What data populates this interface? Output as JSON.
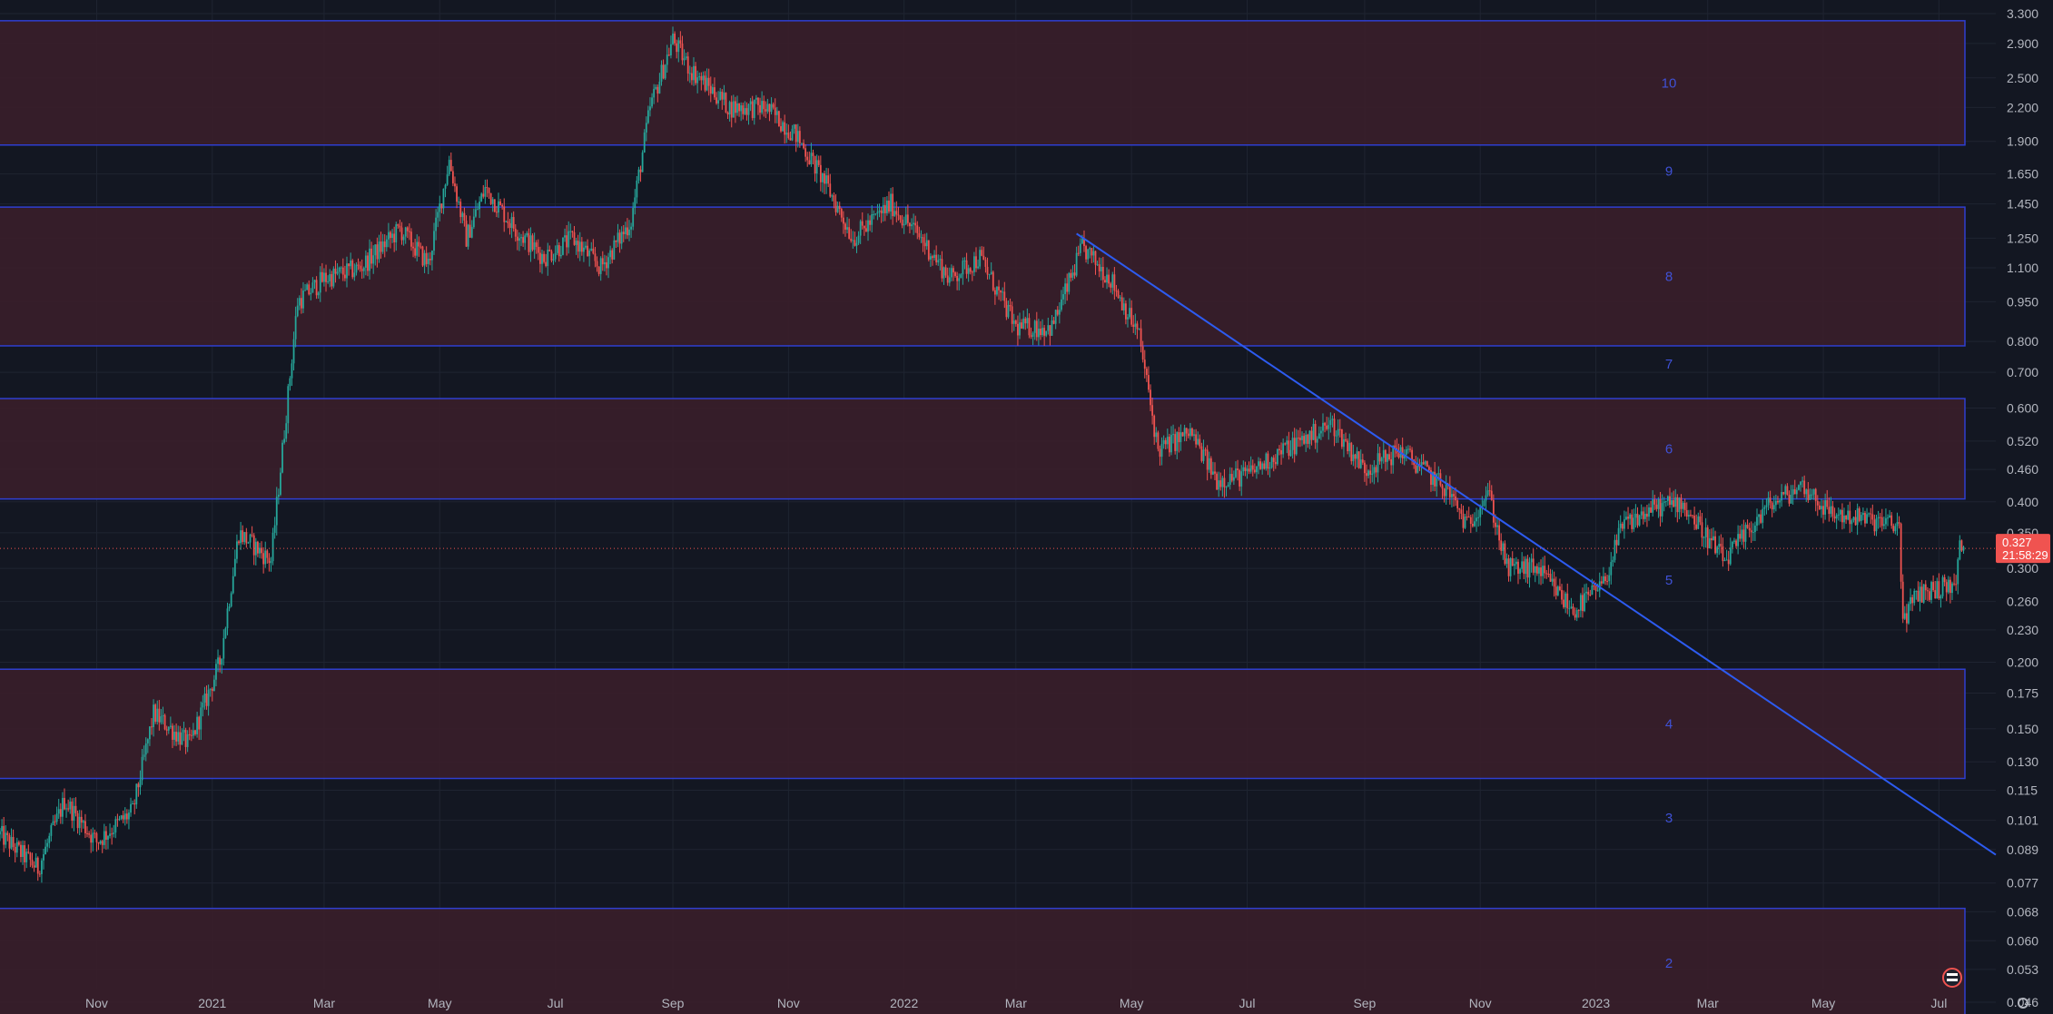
{
  "chart_data": {
    "type": "candlestick",
    "y_scale": "log",
    "y_tick_labels": [
      "3.300",
      "2.900",
      "2.500",
      "2.200",
      "1.900",
      "1.650",
      "1.450",
      "1.250",
      "1.100",
      "0.950",
      "0.800",
      "0.700",
      "0.600",
      "0.520",
      "0.460",
      "0.400",
      "0.350",
      "0.300",
      "0.260",
      "0.230",
      "0.200",
      "0.175",
      "0.150",
      "0.130",
      "0.115",
      "0.101",
      "0.089",
      "0.077",
      "0.068",
      "0.060",
      "0.053",
      "0.046"
    ],
    "x_tick_labels": [
      "Nov",
      "2021",
      "Mar",
      "May",
      "Jul",
      "Sep",
      "Nov",
      "2022",
      "Mar",
      "May",
      "Jul",
      "Sep",
      "Nov",
      "2023",
      "Mar",
      "May",
      "Jul"
    ],
    "x_range": [
      "2020-09-11",
      "2023-07-31"
    ],
    "y_range": [
      0.043,
      3.35
    ],
    "zones": [
      {
        "label": "10",
        "low": 1.87,
        "high": 3.2
      },
      {
        "label": "8",
        "low": 0.785,
        "high": 1.43
      },
      {
        "label": "6",
        "low": 0.405,
        "high": 0.625
      },
      {
        "label": "4",
        "low": 0.121,
        "high": 0.194
      },
      {
        "label": "2",
        "low": 0.043,
        "high": 0.069
      }
    ],
    "zone_numbers": [
      {
        "label": "9",
        "price": 1.67
      },
      {
        "label": "7",
        "price": 0.725
      },
      {
        "label": "5",
        "price": 0.285
      },
      {
        "label": "3",
        "price": 0.102
      }
    ],
    "trendline": {
      "start_date": "2022-04-02",
      "start_price": 1.275,
      "end_date": "2023-07-31",
      "end_price": 0.087
    },
    "current_price": {
      "value": 0.327,
      "label": "0.327",
      "countdown": "21:58:29"
    },
    "colors": {
      "up": "#26a69a",
      "down": "#ef5350",
      "zone_fill": "#3a1e2a",
      "zone_border": "#2f3fd0",
      "trendline": "#2d5bf0",
      "background": "#131722"
    },
    "price_path": [
      [
        "2020-09-11",
        0.095
      ],
      [
        "2020-10-01",
        0.082
      ],
      [
        "2020-10-15",
        0.11
      ],
      [
        "2020-11-01",
        0.092
      ],
      [
        "2020-11-20",
        0.105
      ],
      [
        "2020-12-01",
        0.16
      ],
      [
        "2020-12-20",
        0.14
      ],
      [
        "2021-01-05",
        0.2
      ],
      [
        "2021-01-15",
        0.35
      ],
      [
        "2021-02-01",
        0.31
      ],
      [
        "2021-02-15",
        0.95
      ],
      [
        "2021-03-01",
        1.05
      ],
      [
        "2021-03-20",
        1.1
      ],
      [
        "2021-04-10",
        1.3
      ],
      [
        "2021-04-25",
        1.12
      ],
      [
        "2021-05-06",
        1.75
      ],
      [
        "2021-05-15",
        1.25
      ],
      [
        "2021-05-25",
        1.55
      ],
      [
        "2021-06-10",
        1.3
      ],
      [
        "2021-06-25",
        1.15
      ],
      [
        "2021-07-10",
        1.25
      ],
      [
        "2021-07-25",
        1.1
      ],
      [
        "2021-08-10",
        1.35
      ],
      [
        "2021-08-20",
        2.2
      ],
      [
        "2021-09-01",
        2.95
      ],
      [
        "2021-09-10",
        2.6
      ],
      [
        "2021-10-01",
        2.2
      ],
      [
        "2021-10-20",
        2.2
      ],
      [
        "2021-11-05",
        1.95
      ],
      [
        "2021-11-20",
        1.6
      ],
      [
        "2021-12-05",
        1.25
      ],
      [
        "2021-12-25",
        1.45
      ],
      [
        "2022-01-10",
        1.25
      ],
      [
        "2022-01-25",
        1.05
      ],
      [
        "2022-02-10",
        1.15
      ],
      [
        "2022-03-01",
        0.85
      ],
      [
        "2022-03-20",
        0.85
      ],
      [
        "2022-04-05",
        1.2
      ],
      [
        "2022-04-20",
        1.05
      ],
      [
        "2022-05-05",
        0.82
      ],
      [
        "2022-05-15",
        0.5
      ],
      [
        "2022-06-01",
        0.54
      ],
      [
        "2022-06-15",
        0.44
      ],
      [
        "2022-07-01",
        0.45
      ],
      [
        "2022-07-20",
        0.5
      ],
      [
        "2022-08-15",
        0.56
      ],
      [
        "2022-09-01",
        0.46
      ],
      [
        "2022-09-20",
        0.5
      ],
      [
        "2022-10-15",
        0.42
      ],
      [
        "2022-10-25",
        0.36
      ],
      [
        "2022-11-05",
        0.42
      ],
      [
        "2022-11-15",
        0.3
      ],
      [
        "2022-12-01",
        0.3
      ],
      [
        "2022-12-20",
        0.25
      ],
      [
        "2023-01-05",
        0.28
      ],
      [
        "2023-01-15",
        0.36
      ],
      [
        "2023-02-01",
        0.39
      ],
      [
        "2023-02-15",
        0.4
      ],
      [
        "2023-03-10",
        0.31
      ],
      [
        "2023-04-01",
        0.39
      ],
      [
        "2023-04-20",
        0.43
      ],
      [
        "2023-05-05",
        0.38
      ],
      [
        "2023-05-25",
        0.37
      ],
      [
        "2023-06-10",
        0.36
      ],
      [
        "2023-06-12",
        0.24
      ],
      [
        "2023-06-20",
        0.27
      ],
      [
        "2023-07-10",
        0.28
      ],
      [
        "2023-07-12",
        0.33
      ],
      [
        "2023-07-14",
        0.327
      ]
    ]
  }
}
